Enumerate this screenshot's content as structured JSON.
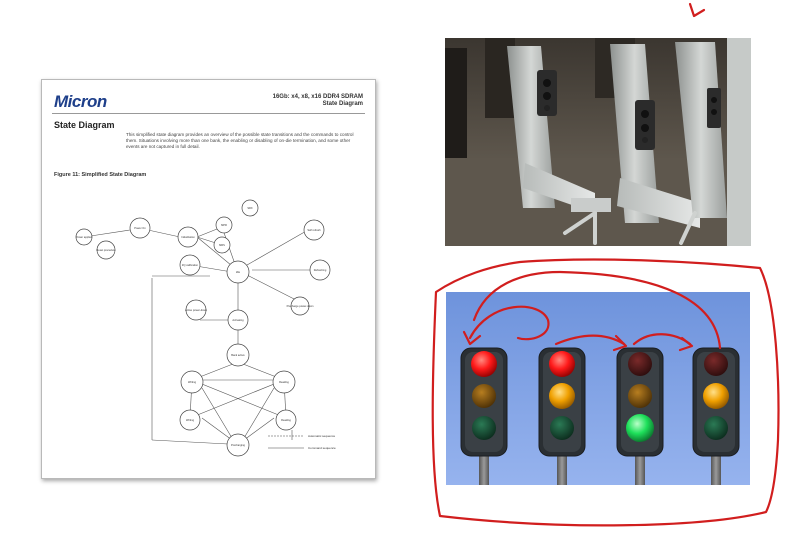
{
  "document": {
    "logo": "Micron",
    "header_line1": "16Gb: x4, x8, x16 DDR4 SDRAM",
    "header_line2": "State Diagram",
    "section_title": "State Diagram",
    "intro": "This simplified state diagram provides an overview of the possible state transitions and the commands to control them. Situations involving more than one bank, the enabling or disabling of on-die termination, and some other events are not captured in full detail.",
    "figure_title": "Figure 11: Simplified State Diagram",
    "states": [
      "Power applied",
      "Power On",
      "Reset procedure",
      "Initialization",
      "MPR",
      "SRX",
      "MRS",
      "Idle",
      "Self refresh",
      "Refreshing",
      "Activating",
      "Bank active",
      "Active power-down",
      "Precharge power-down",
      "Writing",
      "Reading",
      "Writing",
      "Reading",
      "Precharging",
      "ZQ calibration"
    ],
    "legend": [
      "Automatic sequence",
      "Command sequence"
    ]
  },
  "photos": {
    "turnstile": "subway-turnstiles-photo",
    "traffic_lights": "traffic-lights-illustration"
  },
  "traffic_lights": {
    "lit": [
      "red",
      "red-yellow",
      "green",
      "yellow"
    ]
  },
  "colors": {
    "ink": "#d11e1e",
    "micron_blue": "#1e3f8a",
    "sky": "#7fa1e6",
    "light_housing": "#2a2f33"
  }
}
